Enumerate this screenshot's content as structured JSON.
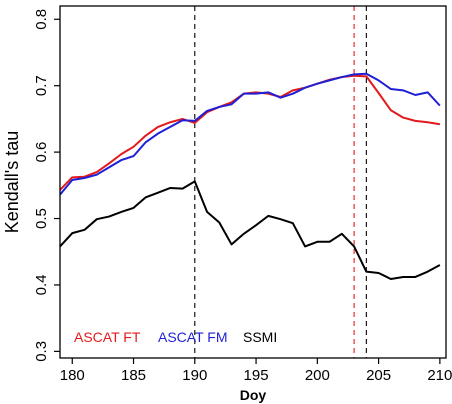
{
  "chart_data": {
    "type": "line",
    "title": "",
    "xlabel": "Doy",
    "ylabel": "Kendall's tau",
    "xlim": [
      179,
      210.5
    ],
    "ylim": [
      0.29,
      0.82
    ],
    "xticks": [
      180,
      185,
      190,
      195,
      200,
      205,
      210
    ],
    "yticks": [
      0.3,
      0.4,
      0.5,
      0.6,
      0.7,
      0.8
    ],
    "grid": false,
    "legend_position": "bottom-left",
    "series": [
      {
        "name": "ASCAT FT",
        "color": "#e31a1c",
        "x": [
          179,
          180,
          181,
          182,
          183,
          184,
          185,
          186,
          187,
          188,
          189,
          190,
          191,
          192,
          193,
          194,
          195,
          196,
          197,
          198,
          199,
          200,
          201,
          202,
          203,
          204,
          205,
          206,
          207,
          208,
          209,
          210
        ],
        "y": [
          0.543,
          0.562,
          0.563,
          0.57,
          0.583,
          0.597,
          0.608,
          0.625,
          0.638,
          0.645,
          0.65,
          0.644,
          0.66,
          0.668,
          0.675,
          0.688,
          0.69,
          0.688,
          0.683,
          0.693,
          0.697,
          0.703,
          0.709,
          0.713,
          0.715,
          0.714,
          0.689,
          0.663,
          0.652,
          0.647,
          0.645,
          0.642
        ]
      },
      {
        "name": "ASCAT FM",
        "color": "#1f1fd6",
        "x": [
          179,
          180,
          181,
          182,
          183,
          184,
          185,
          186,
          187,
          188,
          189,
          190,
          191,
          192,
          193,
          194,
          195,
          196,
          197,
          198,
          199,
          200,
          201,
          202,
          203,
          204,
          205,
          206,
          207,
          208,
          209,
          210
        ],
        "y": [
          0.536,
          0.558,
          0.561,
          0.566,
          0.577,
          0.588,
          0.594,
          0.615,
          0.628,
          0.638,
          0.648,
          0.647,
          0.662,
          0.668,
          0.672,
          0.688,
          0.688,
          0.69,
          0.682,
          0.688,
          0.697,
          0.703,
          0.708,
          0.713,
          0.717,
          0.718,
          0.708,
          0.695,
          0.693,
          0.686,
          0.69,
          0.67
        ]
      },
      {
        "name": "SSMI",
        "color": "#000000",
        "x": [
          179,
          180,
          181,
          182,
          183,
          184,
          185,
          186,
          187,
          188,
          189,
          190,
          191,
          192,
          193,
          194,
          195,
          196,
          197,
          198,
          199,
          200,
          201,
          202,
          203,
          204,
          205,
          206,
          207,
          208,
          209,
          210
        ],
        "y": [
          0.458,
          0.478,
          0.483,
          0.499,
          0.503,
          0.51,
          0.516,
          0.532,
          0.539,
          0.546,
          0.545,
          0.556,
          0.51,
          0.494,
          0.461,
          0.477,
          0.49,
          0.504,
          0.499,
          0.493,
          0.458,
          0.465,
          0.465,
          0.477,
          0.458,
          0.42,
          0.418,
          0.409,
          0.412,
          0.412,
          0.42,
          0.43
        ]
      }
    ],
    "annotations": [
      {
        "type": "vline",
        "x": 190,
        "color": "#000000",
        "style": "dashed"
      },
      {
        "type": "vline",
        "x": 203,
        "color": "#e31a1c",
        "style": "dashed"
      },
      {
        "type": "vline",
        "x": 204,
        "color": "#000000",
        "style": "dashed"
      }
    ]
  }
}
